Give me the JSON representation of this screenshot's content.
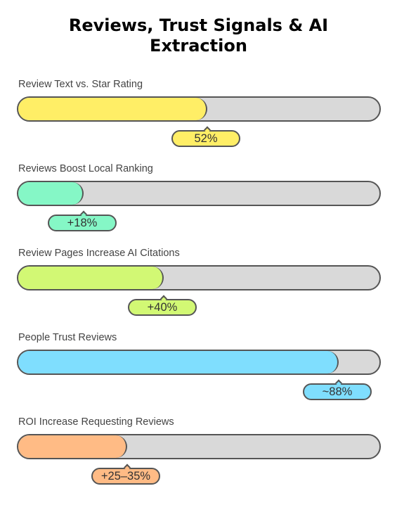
{
  "title": "Reviews, Trust Signals & AI\nExtraction",
  "chart_data": {
    "type": "bar",
    "title": "Reviews, Trust Signals & AI Extraction",
    "orientation": "horizontal",
    "categories": [
      "Review Text vs. Star Rating",
      "Reviews Boost Local Ranking",
      "Review Pages Increase AI Citations",
      "People Trust Reviews",
      "ROI Increase Requesting Reviews"
    ],
    "values": [
      52,
      18,
      40,
      88,
      30
    ],
    "value_labels": [
      "52%",
      "+18%",
      "+40%",
      "~88%",
      "+25–35%"
    ],
    "colors": [
      "#ffee66",
      "#85f7c6",
      "#d2f874",
      "#7fdefe",
      "#ffbb85"
    ],
    "xlim": [
      0,
      100
    ],
    "unit": "%"
  }
}
